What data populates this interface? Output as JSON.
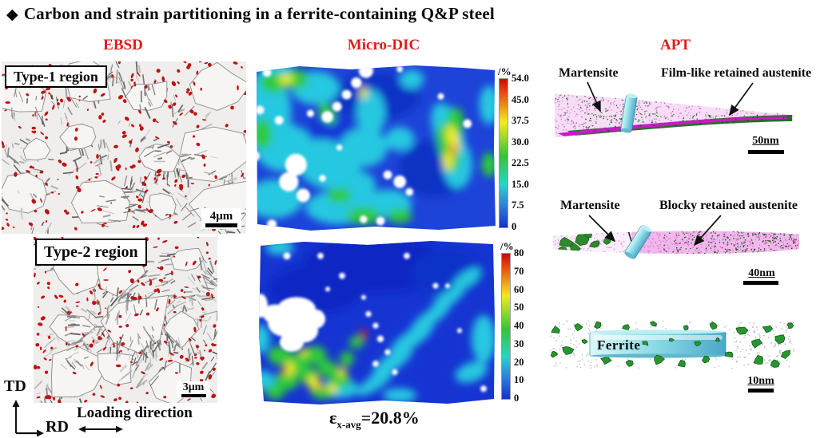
{
  "title": {
    "bullet": "◆",
    "text": "Carbon and strain partitioning in a ferrite-containing Q&P steel"
  },
  "columns": {
    "ebsd": "EBSD",
    "dic": "Micro-DIC",
    "apt": "APT"
  },
  "ebsd": {
    "panel1": {
      "label": "Type-1 region",
      "scale": "4μm"
    },
    "panel2": {
      "label": "Type-2 region",
      "scale": "3μm"
    }
  },
  "dic": {
    "colorbar1": {
      "unit": "/%",
      "ticks": [
        "54.0",
        "45.0",
        "37.5",
        "30.0",
        "22.5",
        "15.0",
        "7.5",
        "0"
      ]
    },
    "colorbar2": {
      "unit": "/%",
      "ticks": [
        "80",
        "70",
        "60",
        "50",
        "40",
        "30",
        "20",
        "10",
        "0"
      ]
    },
    "strain": {
      "symbol": "ε",
      "sub": "x-avg",
      "rest": "=20.8%"
    }
  },
  "apt": {
    "tip1": {
      "label_left": "Martensite",
      "label_right": "Film-like retained austenite",
      "scale": "50nm"
    },
    "tip2": {
      "label_left": "Martensite",
      "label_right": "Blocky retained austenite",
      "scale": "40nm"
    },
    "tip3": {
      "label": "Ferrite",
      "scale": "10nm"
    }
  },
  "axes": {
    "vertical": "TD",
    "horizontal": "RD",
    "loading": "Loading direction"
  },
  "colors": {
    "header_red": "#e01b1b",
    "austenite_red": "#c01212",
    "dic_blue": "#1b3fd4",
    "cyan_cylinder": "#7ee6e6",
    "green_phase": "#2d8a2d",
    "magenta_phase": "#cc17cc"
  }
}
